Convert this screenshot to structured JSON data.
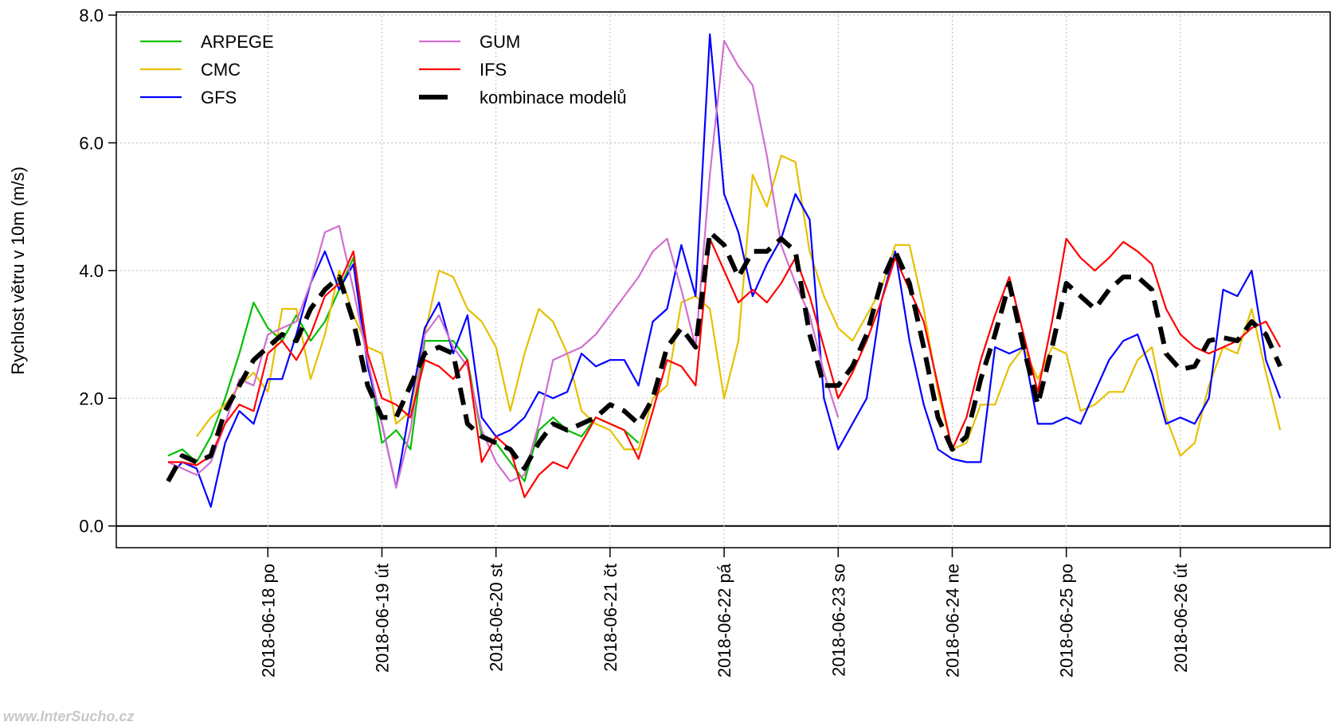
{
  "chart_data": {
    "type": "line",
    "ylabel": "Rychlost větru v 10m (m/s)",
    "watermark": "www.InterSucho.cz",
    "categories": [
      null,
      null,
      null,
      null,
      null,
      null,
      null,
      "2018-06-18 po",
      null,
      null,
      null,
      null,
      null,
      null,
      null,
      "2018-06-19 út",
      null,
      null,
      null,
      null,
      null,
      null,
      null,
      "2018-06-20 st",
      null,
      null,
      null,
      null,
      null,
      null,
      null,
      "2018-06-21 čt",
      null,
      null,
      null,
      null,
      null,
      null,
      null,
      "2018-06-22 pá",
      null,
      null,
      null,
      null,
      null,
      null,
      null,
      "2018-06-23 so",
      null,
      null,
      null,
      null,
      null,
      null,
      null,
      "2018-06-24 ne",
      null,
      null,
      null,
      null,
      null,
      null,
      null,
      "2018-06-25 po",
      null,
      null,
      null,
      null,
      null,
      null,
      null,
      "2018-06-26 út",
      null,
      null,
      null,
      null,
      null,
      null,
      null
    ],
    "ylim": [
      -0.34,
      8.05
    ],
    "yticks": [
      {
        "value": 0,
        "label": "0.0"
      },
      {
        "value": 2,
        "label": "2.0"
      },
      {
        "value": 4,
        "label": "4.0"
      },
      {
        "value": 6,
        "label": "6.0"
      },
      {
        "value": 8,
        "label": "8.0"
      }
    ],
    "grid": true,
    "legend": "top-left",
    "series": [
      {
        "name": "ARPEGE",
        "color": "#00c000",
        "values": [
          1.1,
          1.2,
          1.0,
          1.4,
          2.0,
          2.7,
          3.5,
          3.1,
          2.9,
          3.3,
          2.9,
          3.2,
          3.7,
          4.2,
          2.6,
          1.3,
          1.5,
          1.2,
          2.9,
          2.9,
          2.9,
          2.6,
          1.4,
          1.3,
          1.0,
          0.7,
          1.5,
          1.7,
          1.5,
          1.4,
          1.7,
          1.6,
          1.5,
          1.3,
          null,
          null,
          null,
          null,
          null,
          null,
          null,
          null,
          null,
          null,
          null,
          null,
          null,
          null,
          null,
          null,
          null,
          null,
          null,
          null,
          null,
          null,
          null,
          null,
          null,
          null,
          null,
          null,
          null,
          null,
          null,
          null,
          null,
          null,
          null,
          null,
          null,
          null,
          null,
          null,
          null,
          null,
          null,
          null,
          null
        ]
      },
      {
        "name": "CMC",
        "color": "#e6c000",
        "values": [
          null,
          null,
          1.4,
          1.7,
          1.9,
          2.2,
          2.4,
          2.1,
          3.4,
          3.4,
          2.3,
          3.0,
          4.0,
          3.3,
          2.8,
          2.7,
          1.6,
          1.8,
          3.0,
          4.0,
          3.9,
          3.4,
          3.2,
          2.8,
          1.8,
          2.7,
          3.4,
          3.2,
          2.7,
          1.8,
          1.6,
          1.5,
          1.2,
          1.2,
          2.0,
          2.2,
          3.5,
          3.6,
          3.4,
          2.0,
          2.9,
          5.5,
          5.0,
          5.8,
          5.7,
          4.3,
          3.6,
          3.1,
          2.9,
          3.3,
          3.7,
          4.4,
          4.4,
          3.4,
          2.1,
          1.2,
          1.3,
          1.9,
          1.9,
          2.5,
          2.8,
          2.3,
          2.8,
          2.7,
          1.8,
          1.9,
          2.1,
          2.1,
          2.6,
          2.8,
          1.7,
          1.1,
          1.3,
          2.2,
          2.8,
          2.7,
          3.4,
          2.4,
          1.5
        ]
      },
      {
        "name": "GFS",
        "color": "#0000ff",
        "values": [
          0.75,
          1.0,
          0.9,
          0.3,
          1.3,
          1.8,
          1.6,
          2.3,
          2.3,
          3.0,
          3.8,
          4.3,
          3.7,
          4.1,
          2.5,
          1.6,
          0.6,
          1.9,
          3.1,
          3.5,
          2.7,
          3.3,
          1.7,
          1.4,
          1.5,
          1.7,
          2.1,
          2.0,
          2.1,
          2.7,
          2.5,
          2.6,
          2.6,
          2.2,
          3.2,
          3.4,
          4.4,
          3.6,
          7.7,
          5.2,
          4.6,
          3.6,
          4.1,
          4.5,
          5.2,
          4.8,
          2.0,
          1.2,
          1.6,
          2.0,
          3.5,
          4.3,
          2.9,
          1.9,
          1.2,
          1.05,
          1.0,
          1.0,
          2.8,
          2.7,
          2.8,
          1.6,
          1.6,
          1.7,
          1.6,
          2.1,
          2.6,
          2.9,
          3.0,
          2.4,
          1.6,
          1.7,
          1.6,
          2.0,
          3.7,
          3.6,
          4.0,
          2.6,
          2.0
        ]
      },
      {
        "name": "GUM",
        "color": "#d070d0",
        "values": [
          1.0,
          0.9,
          0.8,
          1.0,
          1.6,
          2.3,
          2.2,
          3.0,
          3.1,
          3.2,
          3.8,
          4.6,
          4.7,
          3.7,
          2.6,
          1.6,
          0.6,
          1.5,
          3.0,
          3.3,
          2.8,
          2.5,
          1.5,
          1.0,
          0.7,
          0.8,
          1.6,
          2.6,
          2.7,
          2.8,
          3.0,
          3.3,
          3.6,
          3.9,
          4.3,
          4.5,
          3.7,
          2.8,
          5.5,
          7.6,
          7.2,
          6.9,
          5.8,
          4.4,
          3.8,
          3.3,
          2.4,
          1.7,
          null,
          null,
          null,
          null,
          null,
          null,
          null,
          null,
          null,
          null,
          null,
          null,
          null,
          null,
          null,
          null,
          null,
          null,
          null,
          null,
          null,
          null,
          null,
          null,
          null,
          null,
          null,
          null,
          null,
          null,
          null
        ]
      },
      {
        "name": "IFS",
        "color": "#ff0000",
        "values": [
          1.0,
          1.0,
          0.95,
          1.1,
          1.6,
          1.9,
          1.8,
          2.7,
          2.9,
          2.6,
          3.0,
          3.6,
          3.8,
          4.3,
          2.7,
          2.0,
          1.9,
          1.7,
          2.6,
          2.5,
          2.3,
          2.6,
          1.0,
          1.4,
          1.2,
          0.45,
          0.8,
          1.0,
          0.9,
          1.3,
          1.7,
          1.6,
          1.5,
          1.05,
          1.8,
          2.6,
          2.5,
          2.2,
          4.5,
          4.0,
          3.5,
          3.7,
          3.5,
          3.8,
          4.2,
          3.6,
          2.8,
          2.0,
          2.4,
          2.9,
          3.5,
          4.2,
          3.7,
          3.2,
          2.2,
          1.2,
          1.7,
          2.6,
          3.3,
          3.9,
          3.0,
          2.1,
          3.2,
          4.5,
          4.2,
          4.0,
          4.2,
          4.45,
          4.3,
          4.1,
          3.4,
          3.0,
          2.8,
          2.7,
          2.8,
          2.9,
          3.1,
          3.2,
          2.8
        ]
      },
      {
        "name": "kombinace modelů",
        "color": "#000000",
        "linestyle": "dashed",
        "values": [
          0.7,
          1.1,
          1.0,
          1.1,
          1.8,
          2.2,
          2.6,
          2.8,
          3.0,
          2.9,
          3.4,
          3.7,
          3.9,
          3.2,
          2.2,
          1.7,
          1.7,
          2.2,
          2.7,
          2.8,
          2.7,
          1.6,
          1.4,
          1.3,
          1.2,
          0.9,
          1.3,
          1.6,
          1.5,
          1.6,
          1.7,
          1.9,
          1.8,
          1.6,
          2.0,
          2.8,
          3.1,
          2.8,
          4.6,
          4.4,
          3.9,
          4.3,
          4.3,
          4.5,
          4.3,
          3.0,
          2.2,
          2.2,
          2.5,
          3.0,
          3.8,
          4.3,
          3.8,
          2.8,
          1.7,
          1.2,
          1.4,
          2.3,
          3.0,
          3.8,
          2.8,
          1.9,
          2.8,
          3.8,
          3.6,
          3.4,
          3.7,
          3.9,
          3.9,
          3.7,
          2.7,
          2.45,
          2.5,
          2.9,
          2.95,
          2.9,
          3.2,
          3.0,
          2.5
        ]
      }
    ]
  }
}
